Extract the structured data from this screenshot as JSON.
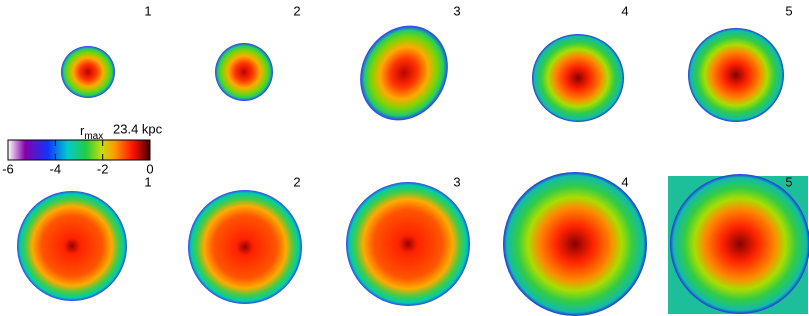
{
  "top_row": {
    "labels": [
      "1",
      "2",
      "3",
      "4",
      "5"
    ]
  },
  "bottom_row": {
    "labels": [
      "1",
      "2",
      "3",
      "4",
      "5"
    ]
  },
  "colorbar": {
    "label": "r",
    "label_sub": "max",
    "scale_text": "23.4 kpc",
    "lim": [
      -6,
      0
    ],
    "ticks": [
      -6,
      -4,
      -2,
      0
    ]
  }
}
